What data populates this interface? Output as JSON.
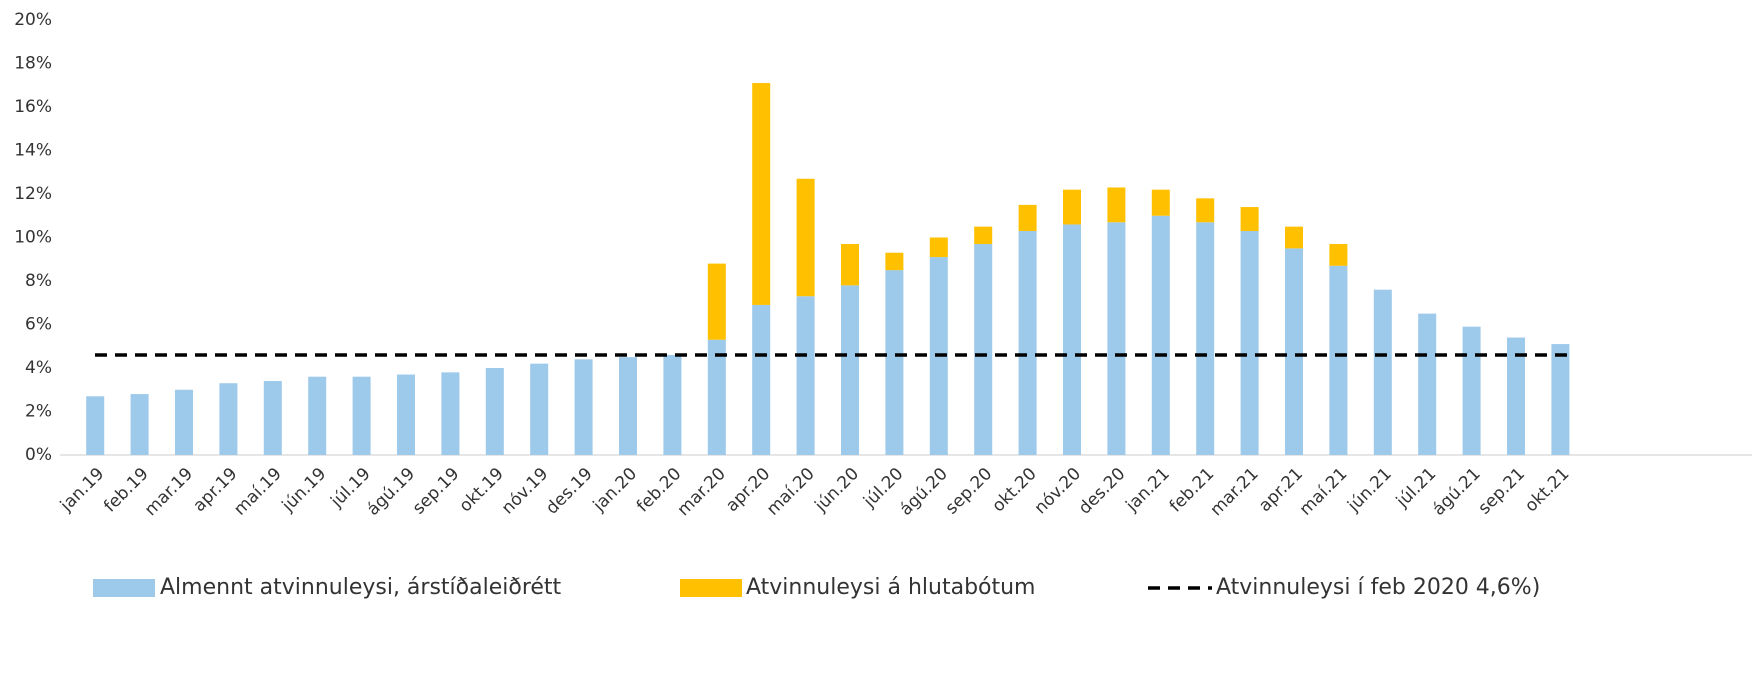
{
  "chart_data": {
    "type": "stacked_bar",
    "categories": [
      "jan.19",
      "feb.19",
      "mar.19",
      "apr.19",
      "maí.19",
      "jún.19",
      "júl.19",
      "ágú.19",
      "sep.19",
      "okt.19",
      "nóv.19",
      "des.19",
      "jan.20",
      "feb.20",
      "mar.20",
      "apr.20",
      "maí.20",
      "jún.20",
      "júl.20",
      "ágú.20",
      "sep.20",
      "okt.20",
      "nóv.20",
      "des.20",
      "jan.21",
      "feb.21",
      "mar.21",
      "apr.21",
      "maí.21",
      "jún.21",
      "júl.21",
      "ágú.21",
      "sep.21",
      "okt.21"
    ],
    "series": [
      {
        "name": "Almennt atvinnuleysi, árstíðaleiðrétt",
        "color": "#9dc9ea",
        "values": [
          2.7,
          2.8,
          3.0,
          3.3,
          3.4,
          3.6,
          3.6,
          3.7,
          3.8,
          4.0,
          4.2,
          4.4,
          4.5,
          4.6,
          5.3,
          6.9,
          7.3,
          7.8,
          8.5,
          9.1,
          9.7,
          10.3,
          10.6,
          10.7,
          11.0,
          10.7,
          10.3,
          9.5,
          8.7,
          7.6,
          6.5,
          5.9,
          5.4,
          5.1
        ]
      },
      {
        "name": "Atvinnuleysi á hlutabótum",
        "color": "#ffc000",
        "values": [
          0,
          0,
          0,
          0,
          0,
          0,
          0,
          0,
          0,
          0,
          0,
          0,
          0,
          0,
          3.5,
          10.2,
          5.4,
          1.9,
          0.8,
          0.9,
          0.8,
          1.2,
          1.6,
          1.6,
          1.2,
          1.1,
          1.1,
          1.0,
          1.0,
          0,
          0,
          0,
          0,
          0
        ]
      }
    ],
    "reference_line": {
      "name": "Atvinnuleysi í feb 2020 4,6%)",
      "value": 4.6,
      "color": "#000000",
      "dashed": true
    },
    "ylim": [
      0,
      20
    ],
    "yticks": [
      {
        "value": 0,
        "label": "0%"
      },
      {
        "value": 2,
        "label": "2%"
      },
      {
        "value": 4,
        "label": "4%"
      },
      {
        "value": 6,
        "label": "6%"
      },
      {
        "value": 8,
        "label": "8%"
      },
      {
        "value": 10,
        "label": "10%"
      },
      {
        "value": 12,
        "label": "12%"
      },
      {
        "value": 14,
        "label": "14%"
      },
      {
        "value": 16,
        "label": "16%"
      },
      {
        "value": 18,
        "label": "18%"
      },
      {
        "value": 20,
        "label": "20%"
      }
    ],
    "grid": false,
    "legend": "bottom"
  }
}
